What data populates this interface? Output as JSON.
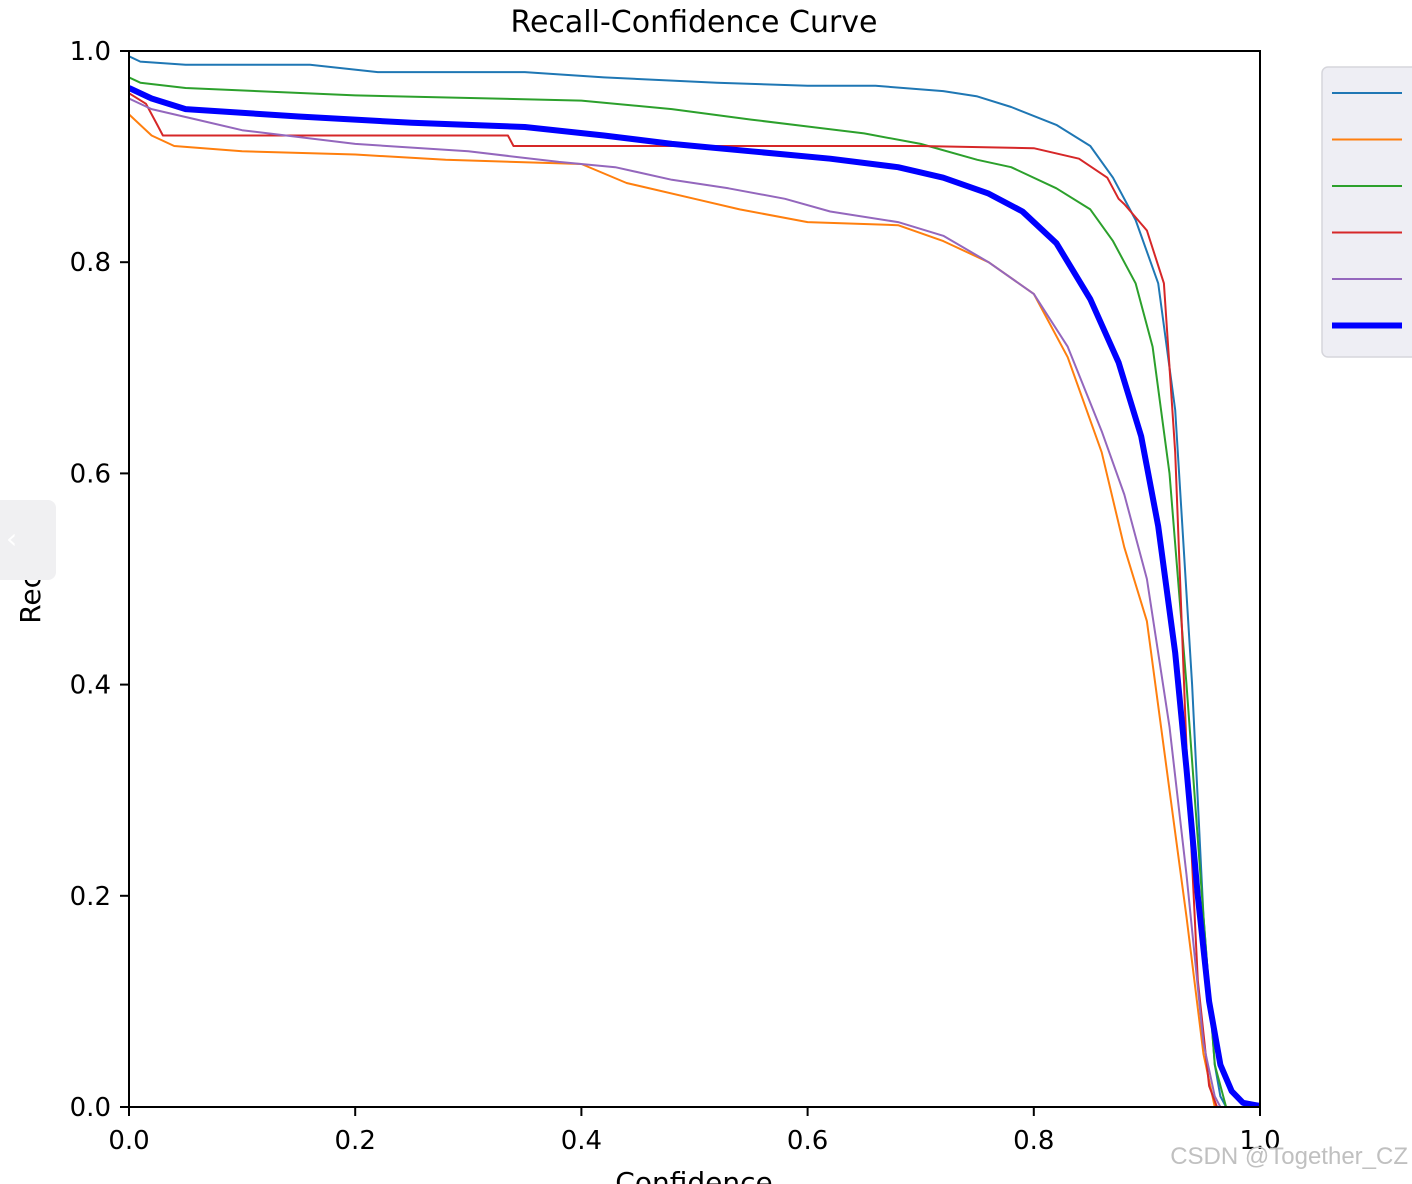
{
  "side_tab": {
    "icon": "chevron-left-icon",
    "glyph": "‹"
  },
  "watermark": "CSDN @Together_CZ",
  "chart_data": {
    "type": "line",
    "title": "Recall-Confidence Curve",
    "xlabel": "Confidence",
    "ylabel": "Recall",
    "xlim": [
      0,
      1
    ],
    "ylim": [
      0,
      1
    ],
    "xticks": [
      "0.0",
      "0.2",
      "0.4",
      "0.6",
      "0.8",
      "1.0"
    ],
    "yticks": [
      "0.0",
      "0.2",
      "0.4",
      "0.6",
      "0.8",
      "1.0"
    ],
    "grid": false,
    "legend": {
      "placement": "top-right",
      "entries": 6
    },
    "series": [
      {
        "color": "#1f77b4",
        "width": 2,
        "x": [
          0,
          0.01,
          0.05,
          0.16,
          0.22,
          0.35,
          0.42,
          0.52,
          0.6,
          0.66,
          0.72,
          0.75,
          0.78,
          0.82,
          0.85,
          0.87,
          0.89,
          0.91,
          0.925,
          0.94,
          0.95,
          0.96,
          0.965,
          0.97
        ],
        "y": [
          0.995,
          0.99,
          0.987,
          0.987,
          0.98,
          0.98,
          0.975,
          0.97,
          0.967,
          0.967,
          0.962,
          0.957,
          0.947,
          0.93,
          0.91,
          0.88,
          0.84,
          0.78,
          0.66,
          0.4,
          0.18,
          0.04,
          0.01,
          0.0
        ]
      },
      {
        "color": "#ff7f0e",
        "width": 2,
        "x": [
          0,
          0.02,
          0.04,
          0.1,
          0.2,
          0.28,
          0.4,
          0.44,
          0.5,
          0.54,
          0.6,
          0.68,
          0.72,
          0.76,
          0.8,
          0.83,
          0.86,
          0.88,
          0.9,
          0.92,
          0.935,
          0.95,
          0.96
        ],
        "y": [
          0.94,
          0.92,
          0.91,
          0.905,
          0.902,
          0.897,
          0.893,
          0.875,
          0.86,
          0.85,
          0.838,
          0.835,
          0.82,
          0.8,
          0.77,
          0.71,
          0.62,
          0.53,
          0.46,
          0.3,
          0.18,
          0.05,
          0.0
        ]
      },
      {
        "color": "#2ca02c",
        "width": 2,
        "x": [
          0,
          0.01,
          0.05,
          0.2,
          0.4,
          0.48,
          0.55,
          0.65,
          0.7,
          0.75,
          0.78,
          0.82,
          0.85,
          0.87,
          0.89,
          0.905,
          0.92,
          0.935,
          0.95,
          0.96,
          0.97
        ],
        "y": [
          0.975,
          0.97,
          0.965,
          0.958,
          0.953,
          0.945,
          0.935,
          0.922,
          0.912,
          0.897,
          0.89,
          0.87,
          0.85,
          0.82,
          0.78,
          0.72,
          0.6,
          0.4,
          0.18,
          0.04,
          0.0
        ]
      },
      {
        "color": "#d62728",
        "width": 2,
        "x": [
          0,
          0.015,
          0.025,
          0.03,
          0.2,
          0.335,
          0.34,
          0.5,
          0.7,
          0.8,
          0.84,
          0.865,
          0.875,
          0.88,
          0.9,
          0.915,
          0.925,
          0.935,
          0.945,
          0.955,
          0.962
        ],
        "y": [
          0.96,
          0.95,
          0.93,
          0.92,
          0.92,
          0.92,
          0.91,
          0.91,
          0.91,
          0.908,
          0.898,
          0.88,
          0.86,
          0.855,
          0.83,
          0.78,
          0.62,
          0.34,
          0.12,
          0.02,
          0.0
        ]
      },
      {
        "color": "#9467bd",
        "width": 2,
        "x": [
          0,
          0.02,
          0.06,
          0.1,
          0.2,
          0.3,
          0.38,
          0.43,
          0.48,
          0.53,
          0.58,
          0.62,
          0.68,
          0.72,
          0.76,
          0.8,
          0.83,
          0.86,
          0.88,
          0.9,
          0.92,
          0.935,
          0.95,
          0.96,
          0.965
        ],
        "y": [
          0.955,
          0.945,
          0.935,
          0.925,
          0.912,
          0.905,
          0.895,
          0.89,
          0.878,
          0.87,
          0.86,
          0.848,
          0.838,
          0.825,
          0.8,
          0.77,
          0.72,
          0.64,
          0.58,
          0.5,
          0.36,
          0.22,
          0.06,
          0.01,
          0.0
        ]
      },
      {
        "color": "#0000ff",
        "width": 6,
        "x": [
          0,
          0.02,
          0.05,
          0.15,
          0.25,
          0.35,
          0.42,
          0.48,
          0.55,
          0.62,
          0.68,
          0.72,
          0.76,
          0.79,
          0.82,
          0.85,
          0.875,
          0.895,
          0.91,
          0.925,
          0.935,
          0.945,
          0.955,
          0.965,
          0.975,
          0.985,
          0.995,
          1.0
        ],
        "y": [
          0.965,
          0.955,
          0.945,
          0.938,
          0.932,
          0.928,
          0.92,
          0.912,
          0.905,
          0.898,
          0.89,
          0.88,
          0.865,
          0.848,
          0.818,
          0.765,
          0.705,
          0.635,
          0.55,
          0.43,
          0.32,
          0.2,
          0.1,
          0.04,
          0.015,
          0.004,
          0.002,
          0.001
        ]
      }
    ]
  }
}
